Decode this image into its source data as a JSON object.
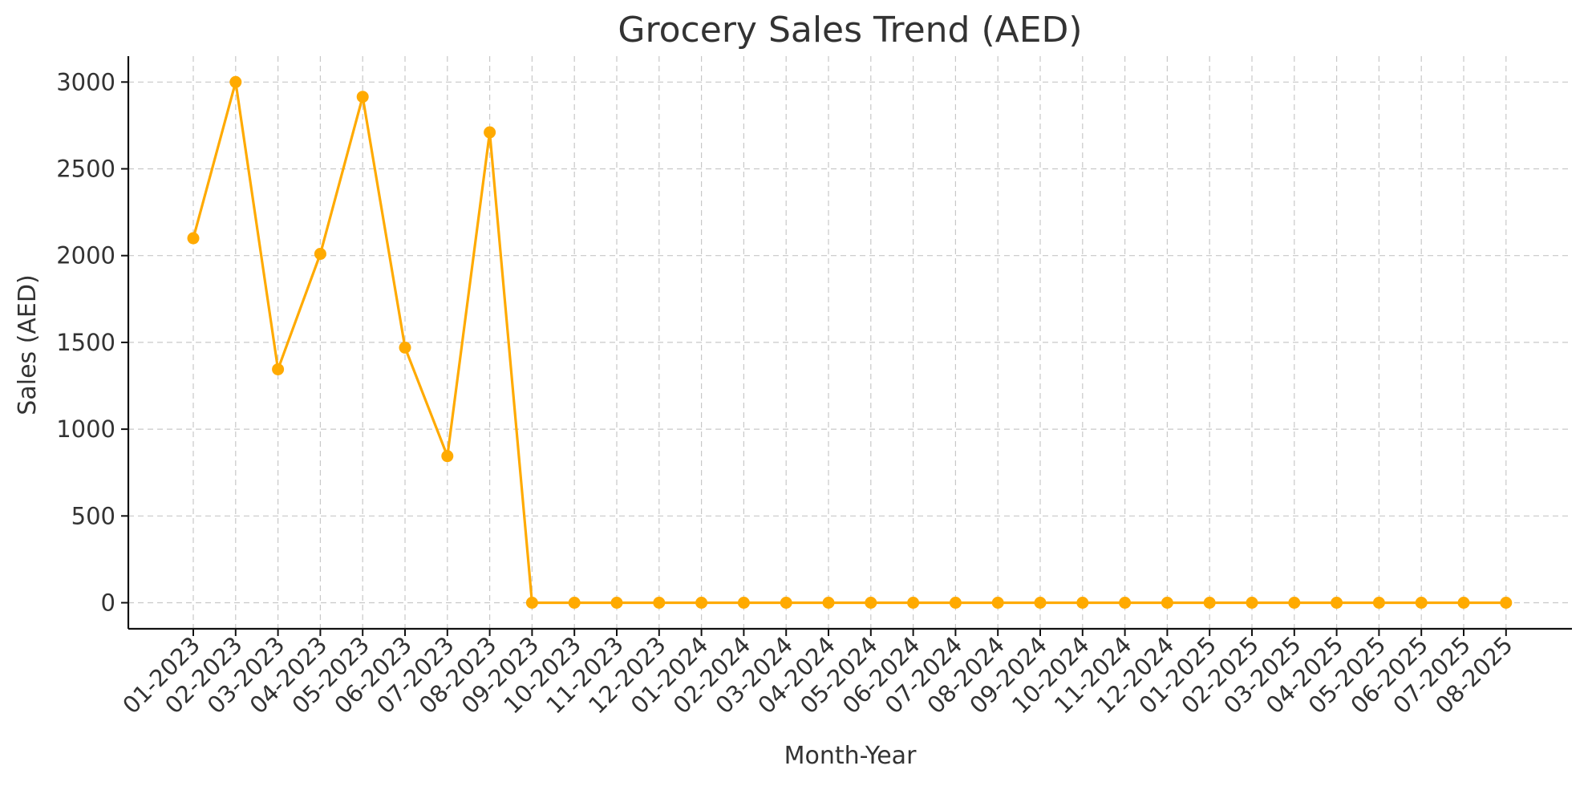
{
  "chart_data": {
    "type": "line",
    "title": "Grocery Sales Trend (AED)",
    "xlabel": "Month-Year",
    "ylabel": "Sales (AED)",
    "categories": [
      "01-2023",
      "02-2023",
      "03-2023",
      "04-2023",
      "05-2023",
      "06-2023",
      "07-2023",
      "08-2023",
      "09-2023",
      "10-2023",
      "11-2023",
      "12-2023",
      "01-2024",
      "02-2024",
      "03-2024",
      "04-2024",
      "05-2024",
      "06-2024",
      "07-2024",
      "08-2024",
      "09-2024",
      "10-2024",
      "11-2024",
      "12-2024",
      "01-2025",
      "02-2025",
      "03-2025",
      "04-2025",
      "05-2025",
      "06-2025",
      "07-2025",
      "08-2025"
    ],
    "series": [
      {
        "values": [
          2100,
          3000,
          1345,
          2010,
          2915,
          1470,
          845,
          2710,
          0,
          0,
          0,
          0,
          0,
          0,
          0,
          0,
          0,
          0,
          0,
          0,
          0,
          0,
          0,
          0,
          0,
          0,
          0,
          0,
          0,
          0,
          0,
          0
        ],
        "color": "#FFAA00"
      }
    ],
    "ylim": [
      -150,
      3150
    ],
    "yticks": [
      0,
      500,
      1000,
      1500,
      2000,
      2500,
      3000
    ],
    "grid": true,
    "marker": "circle",
    "legend": "none"
  }
}
